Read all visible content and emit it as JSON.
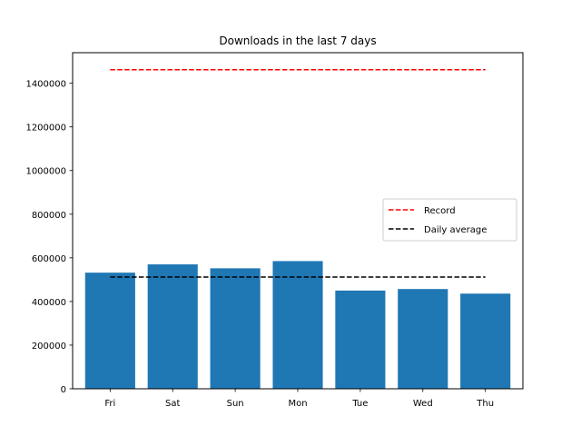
{
  "chart_data": {
    "type": "bar",
    "title": "Downloads in the last 7 days",
    "xlabel": "",
    "ylabel": "",
    "categories": [
      "Fri",
      "Sat",
      "Sun",
      "Mon",
      "Tue",
      "Wed",
      "Thu"
    ],
    "values": [
      532000,
      570000,
      552000,
      585000,
      450000,
      457000,
      436000
    ],
    "ylim": [
      0,
      1540000
    ],
    "yticks": [
      0,
      200000,
      400000,
      600000,
      800000,
      1000000,
      1200000,
      1400000
    ],
    "ytick_labels": [
      "0",
      "200000",
      "400000",
      "600000",
      "800000",
      "1000000",
      "1200000",
      "1400000"
    ],
    "bar_color": "#1f77b4",
    "grid": false,
    "lines": [
      {
        "name": "Record",
        "value": 1462000,
        "color": "#ff0000",
        "style": "dashed"
      },
      {
        "name": "Daily average",
        "value": 512000,
        "color": "#000000",
        "style": "dashed"
      }
    ],
    "legend": {
      "placement": "center-right",
      "entries": [
        "Record",
        "Daily average"
      ]
    }
  }
}
